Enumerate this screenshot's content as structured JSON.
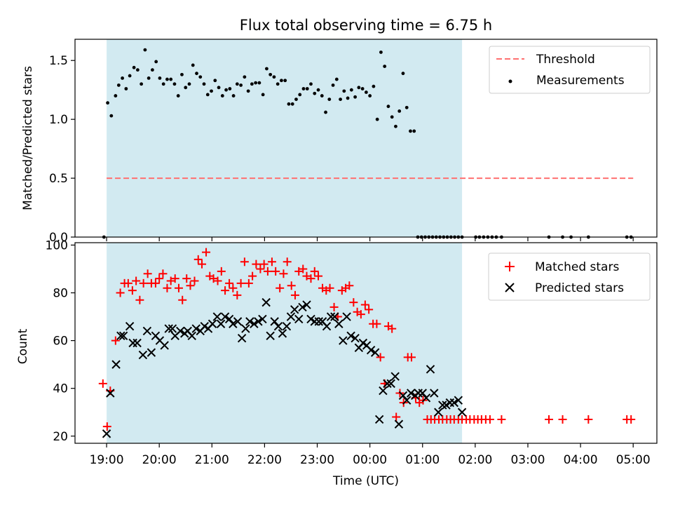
{
  "chart_data": [
    {
      "type": "scatter",
      "title": "Flux total observing time = 6.75 h",
      "ylabel": "Matched/Predicted stars",
      "xlabel": "",
      "ylim": [
        0,
        1.68
      ],
      "xlim_hours": [
        -0.6,
        10.45
      ],
      "x_unit": "hours since 19:00 UTC",
      "yticks": [
        {
          "value": 0.0,
          "label": "0.0"
        },
        {
          "value": 0.5,
          "label": "0.5"
        },
        {
          "value": 1.0,
          "label": "1.0"
        },
        {
          "value": 1.5,
          "label": "1.5"
        }
      ],
      "shaded_interval_hours": [
        0,
        6.75
      ],
      "legend_position": "top-right",
      "threshold": {
        "name": "Threshold",
        "value": 0.5,
        "x_range_hours": [
          0,
          10
        ],
        "color": "#ff7070"
      },
      "series": [
        {
          "name": "Measurements",
          "color": "#000000",
          "x": [
            -0.05,
            0.02,
            0.09,
            0.17,
            0.23,
            0.3,
            0.37,
            0.44,
            0.52,
            0.59,
            0.66,
            0.73,
            0.8,
            0.87,
            0.94,
            1.01,
            1.08,
            1.15,
            1.22,
            1.29,
            1.36,
            1.43,
            1.5,
            1.57,
            1.64,
            1.71,
            1.78,
            1.85,
            1.92,
            1.99,
            2.06,
            2.13,
            2.2,
            2.27,
            2.34,
            2.41,
            2.48,
            2.55,
            2.62,
            2.69,
            2.76,
            2.83,
            2.9,
            2.97,
            3.04,
            3.11,
            3.18,
            3.25,
            3.32,
            3.39,
            3.46,
            3.53,
            3.6,
            3.67,
            3.74,
            3.81,
            3.88,
            3.95,
            4.02,
            4.09,
            4.16,
            4.23,
            4.3,
            4.37,
            4.44,
            4.51,
            4.58,
            4.65,
            4.72,
            4.79,
            4.86,
            4.93,
            5.0,
            5.07,
            5.14,
            5.21,
            5.28,
            5.35,
            5.42,
            5.49,
            5.56,
            5.63,
            5.7,
            5.77,
            5.84,
            5.91,
            5.98,
            6.05,
            6.12,
            6.19,
            6.26,
            6.33,
            6.4,
            6.47,
            6.54,
            6.61,
            6.68,
            6.75,
            7.01,
            7.08,
            7.16,
            7.24,
            7.32,
            7.4,
            7.5,
            8.4,
            8.66,
            8.82,
            9.15,
            9.88,
            9.96
          ],
          "values": [
            0.0,
            1.14,
            1.03,
            1.2,
            1.29,
            1.35,
            1.26,
            1.37,
            1.44,
            1.42,
            1.3,
            1.59,
            1.35,
            1.42,
            1.49,
            1.35,
            1.3,
            1.34,
            1.34,
            1.3,
            1.2,
            1.38,
            1.27,
            1.3,
            1.46,
            1.39,
            1.36,
            1.3,
            1.21,
            1.24,
            1.33,
            1.27,
            1.2,
            1.25,
            1.26,
            1.2,
            1.3,
            1.29,
            1.36,
            1.24,
            1.3,
            1.31,
            1.31,
            1.21,
            1.43,
            1.38,
            1.36,
            1.3,
            1.33,
            1.33,
            1.13,
            1.13,
            1.17,
            1.21,
            1.26,
            1.26,
            1.3,
            1.22,
            1.25,
            1.2,
            1.06,
            1.17,
            1.29,
            1.34,
            1.17,
            1.24,
            1.18,
            1.25,
            1.19,
            1.27,
            1.26,
            1.23,
            1.2,
            1.28,
            1.0,
            1.57,
            1.45,
            1.11,
            1.02,
            0.94,
            1.07,
            1.39,
            1.1,
            0.9,
            0.9,
            0.0,
            0.0,
            0.0,
            0.0,
            0.0,
            0.0,
            0.0,
            0.0,
            0.0,
            0.0,
            0.0,
            0.0,
            0.0,
            0.0,
            0.0,
            0.0,
            0.0,
            0.0,
            0.0,
            0.0,
            0.0,
            0.0,
            0.0,
            0.0,
            0.0,
            0.0
          ]
        }
      ]
    },
    {
      "type": "scatter",
      "title": "",
      "ylabel": "Count",
      "xlabel": "Time (UTC)",
      "ylim": [
        17,
        101
      ],
      "xlim_hours": [
        -0.6,
        10.45
      ],
      "x_unit": "hours since 19:00 UTC",
      "yticks": [
        {
          "value": 20,
          "label": "20"
        },
        {
          "value": 40,
          "label": "40"
        },
        {
          "value": 60,
          "label": "60"
        },
        {
          "value": 80,
          "label": "80"
        },
        {
          "value": 100,
          "label": "100"
        }
      ],
      "xticks": [
        {
          "value": 0,
          "label": "19:00"
        },
        {
          "value": 1,
          "label": "20:00"
        },
        {
          "value": 2,
          "label": "21:00"
        },
        {
          "value": 3,
          "label": "22:00"
        },
        {
          "value": 4,
          "label": "23:00"
        },
        {
          "value": 5,
          "label": "00:00"
        },
        {
          "value": 6,
          "label": "01:00"
        },
        {
          "value": 7,
          "label": "02:00"
        },
        {
          "value": 8,
          "label": "03:00"
        },
        {
          "value": 9,
          "label": "04:00"
        },
        {
          "value": 10,
          "label": "05:00"
        }
      ],
      "shaded_interval_hours": [
        0,
        6.75
      ],
      "legend_position": "top-right",
      "series": [
        {
          "name": "Matched stars",
          "marker": "+",
          "color": "#ff0000",
          "x": [
            -0.07,
            0.01,
            0.07,
            0.17,
            0.26,
            0.34,
            0.41,
            0.49,
            0.56,
            0.63,
            0.7,
            0.78,
            0.85,
            0.93,
            1.0,
            1.07,
            1.15,
            1.22,
            1.3,
            1.37,
            1.44,
            1.52,
            1.59,
            1.67,
            1.74,
            1.81,
            1.89,
            1.96,
            2.03,
            2.11,
            2.18,
            2.25,
            2.33,
            2.4,
            2.48,
            2.55,
            2.62,
            2.7,
            2.77,
            2.84,
            2.92,
            2.99,
            3.06,
            3.14,
            3.21,
            3.29,
            3.36,
            3.43,
            3.51,
            3.58,
            3.65,
            3.73,
            3.8,
            3.88,
            3.95,
            4.02,
            4.1,
            4.17,
            4.24,
            4.32,
            4.39,
            4.47,
            4.54,
            4.61,
            4.69,
            4.76,
            4.83,
            4.91,
            4.98,
            5.06,
            5.13,
            5.2,
            5.28,
            5.35,
            5.42,
            5.5,
            5.57,
            5.64,
            5.72,
            5.79,
            5.87,
            5.94,
            6.01,
            6.09,
            6.16,
            6.23,
            6.31,
            6.38,
            6.46,
            6.53,
            6.6,
            6.68,
            6.75,
            6.83,
            6.9,
            6.98,
            7.05,
            7.12,
            7.2,
            7.28,
            7.5,
            8.4,
            8.66,
            9.15,
            9.88,
            9.96
          ],
          "values": [
            42,
            24,
            39,
            60,
            80,
            84,
            84,
            81,
            85,
            77,
            84,
            88,
            84,
            84,
            86,
            88,
            82,
            85,
            86,
            82,
            77,
            86,
            83,
            85,
            94,
            92,
            97,
            87,
            86,
            85,
            89,
            81,
            84,
            82,
            79,
            84,
            93,
            84,
            87,
            92,
            90,
            92,
            89,
            93,
            89,
            82,
            88,
            93,
            83,
            79,
            89,
            90,
            87,
            86,
            89,
            87,
            82,
            81,
            82,
            74,
            70,
            81,
            82,
            83,
            76,
            72,
            71,
            75,
            73,
            67,
            67,
            53,
            42,
            66,
            65,
            28,
            38,
            34,
            53,
            53,
            36,
            34,
            35,
            27,
            27,
            27,
            27,
            27,
            27,
            27,
            27,
            27,
            27,
            27,
            27,
            27,
            27,
            27,
            27,
            27,
            27,
            27,
            27,
            27,
            27,
            27
          ]
        },
        {
          "name": "Predicted stars",
          "marker": "x",
          "color": "#000000",
          "x": [
            0.0,
            0.07,
            0.18,
            0.27,
            0.32,
            0.44,
            0.5,
            0.58,
            0.69,
            0.77,
            0.85,
            0.93,
            1.01,
            1.1,
            1.18,
            1.25,
            1.3,
            1.4,
            1.48,
            1.54,
            1.62,
            1.7,
            1.78,
            1.86,
            1.93,
            2.01,
            2.1,
            2.17,
            2.25,
            2.33,
            2.4,
            2.49,
            2.57,
            2.64,
            2.72,
            2.8,
            2.88,
            2.96,
            3.03,
            3.11,
            3.19,
            3.26,
            3.34,
            3.42,
            3.5,
            3.57,
            3.65,
            3.72,
            3.8,
            3.88,
            3.95,
            4.03,
            4.1,
            4.18,
            4.26,
            4.33,
            4.41,
            4.49,
            4.56,
            4.64,
            4.72,
            4.79,
            4.87,
            4.94,
            5.02,
            5.1,
            5.18,
            5.25,
            5.33,
            5.4,
            5.48,
            5.55,
            5.63,
            5.7,
            5.78,
            5.86,
            5.92,
            6.0,
            6.07,
            6.15,
            6.22,
            6.3,
            6.38,
            6.45,
            6.52,
            6.6,
            6.68,
            6.75
          ],
          "values": [
            21,
            38,
            50,
            62,
            62,
            66,
            59,
            59,
            54,
            64,
            55,
            62,
            60,
            58,
            65,
            65,
            62,
            64,
            63,
            64,
            62,
            65,
            64,
            66,
            65,
            67,
            70,
            67,
            70,
            69,
            67,
            68,
            61,
            65,
            68,
            67,
            68,
            69,
            76,
            62,
            68,
            66,
            63,
            66,
            70,
            73,
            69,
            74,
            75,
            69,
            68,
            68,
            68,
            66,
            70,
            70,
            67,
            60,
            70,
            62,
            61,
            57,
            59,
            58,
            56,
            55,
            27,
            39,
            42,
            42,
            45,
            25,
            37,
            35,
            38,
            37,
            38,
            38,
            36,
            48,
            38,
            30,
            33,
            33,
            34,
            34,
            35,
            30
          ]
        }
      ]
    }
  ]
}
